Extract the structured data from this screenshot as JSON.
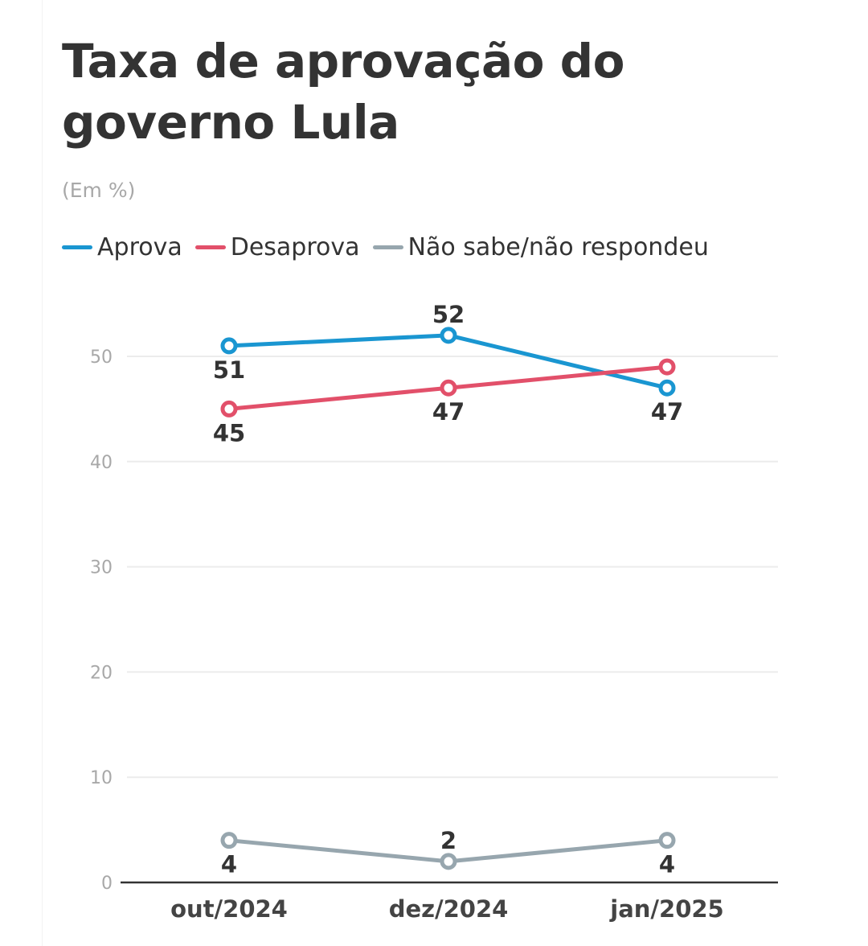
{
  "chart_data": {
    "type": "line",
    "title": "Taxa de aprovação do governo Lula",
    "subtitle": "(Em %)",
    "categories": [
      "out/2024",
      "dez/2024",
      "jan/2025"
    ],
    "series": [
      {
        "name": "Aprova",
        "color": "#1a96d1",
        "values": [
          51,
          52,
          47
        ],
        "labels": [
          "51",
          "52",
          "47"
        ]
      },
      {
        "name": "Desaprova",
        "color": "#e2506a",
        "values": [
          45,
          47,
          49
        ],
        "labels": [
          "45",
          "47",
          null
        ]
      },
      {
        "name": "Não sabe/não respondeu",
        "color": "#97a6ae",
        "values": [
          4,
          2,
          4
        ],
        "labels": [
          "4",
          "2",
          "4"
        ]
      }
    ],
    "yticks": [
      "0",
      "10",
      "20",
      "30",
      "40",
      "50"
    ],
    "ylim": [
      0,
      55
    ],
    "grid": true,
    "legend": "top-left"
  }
}
